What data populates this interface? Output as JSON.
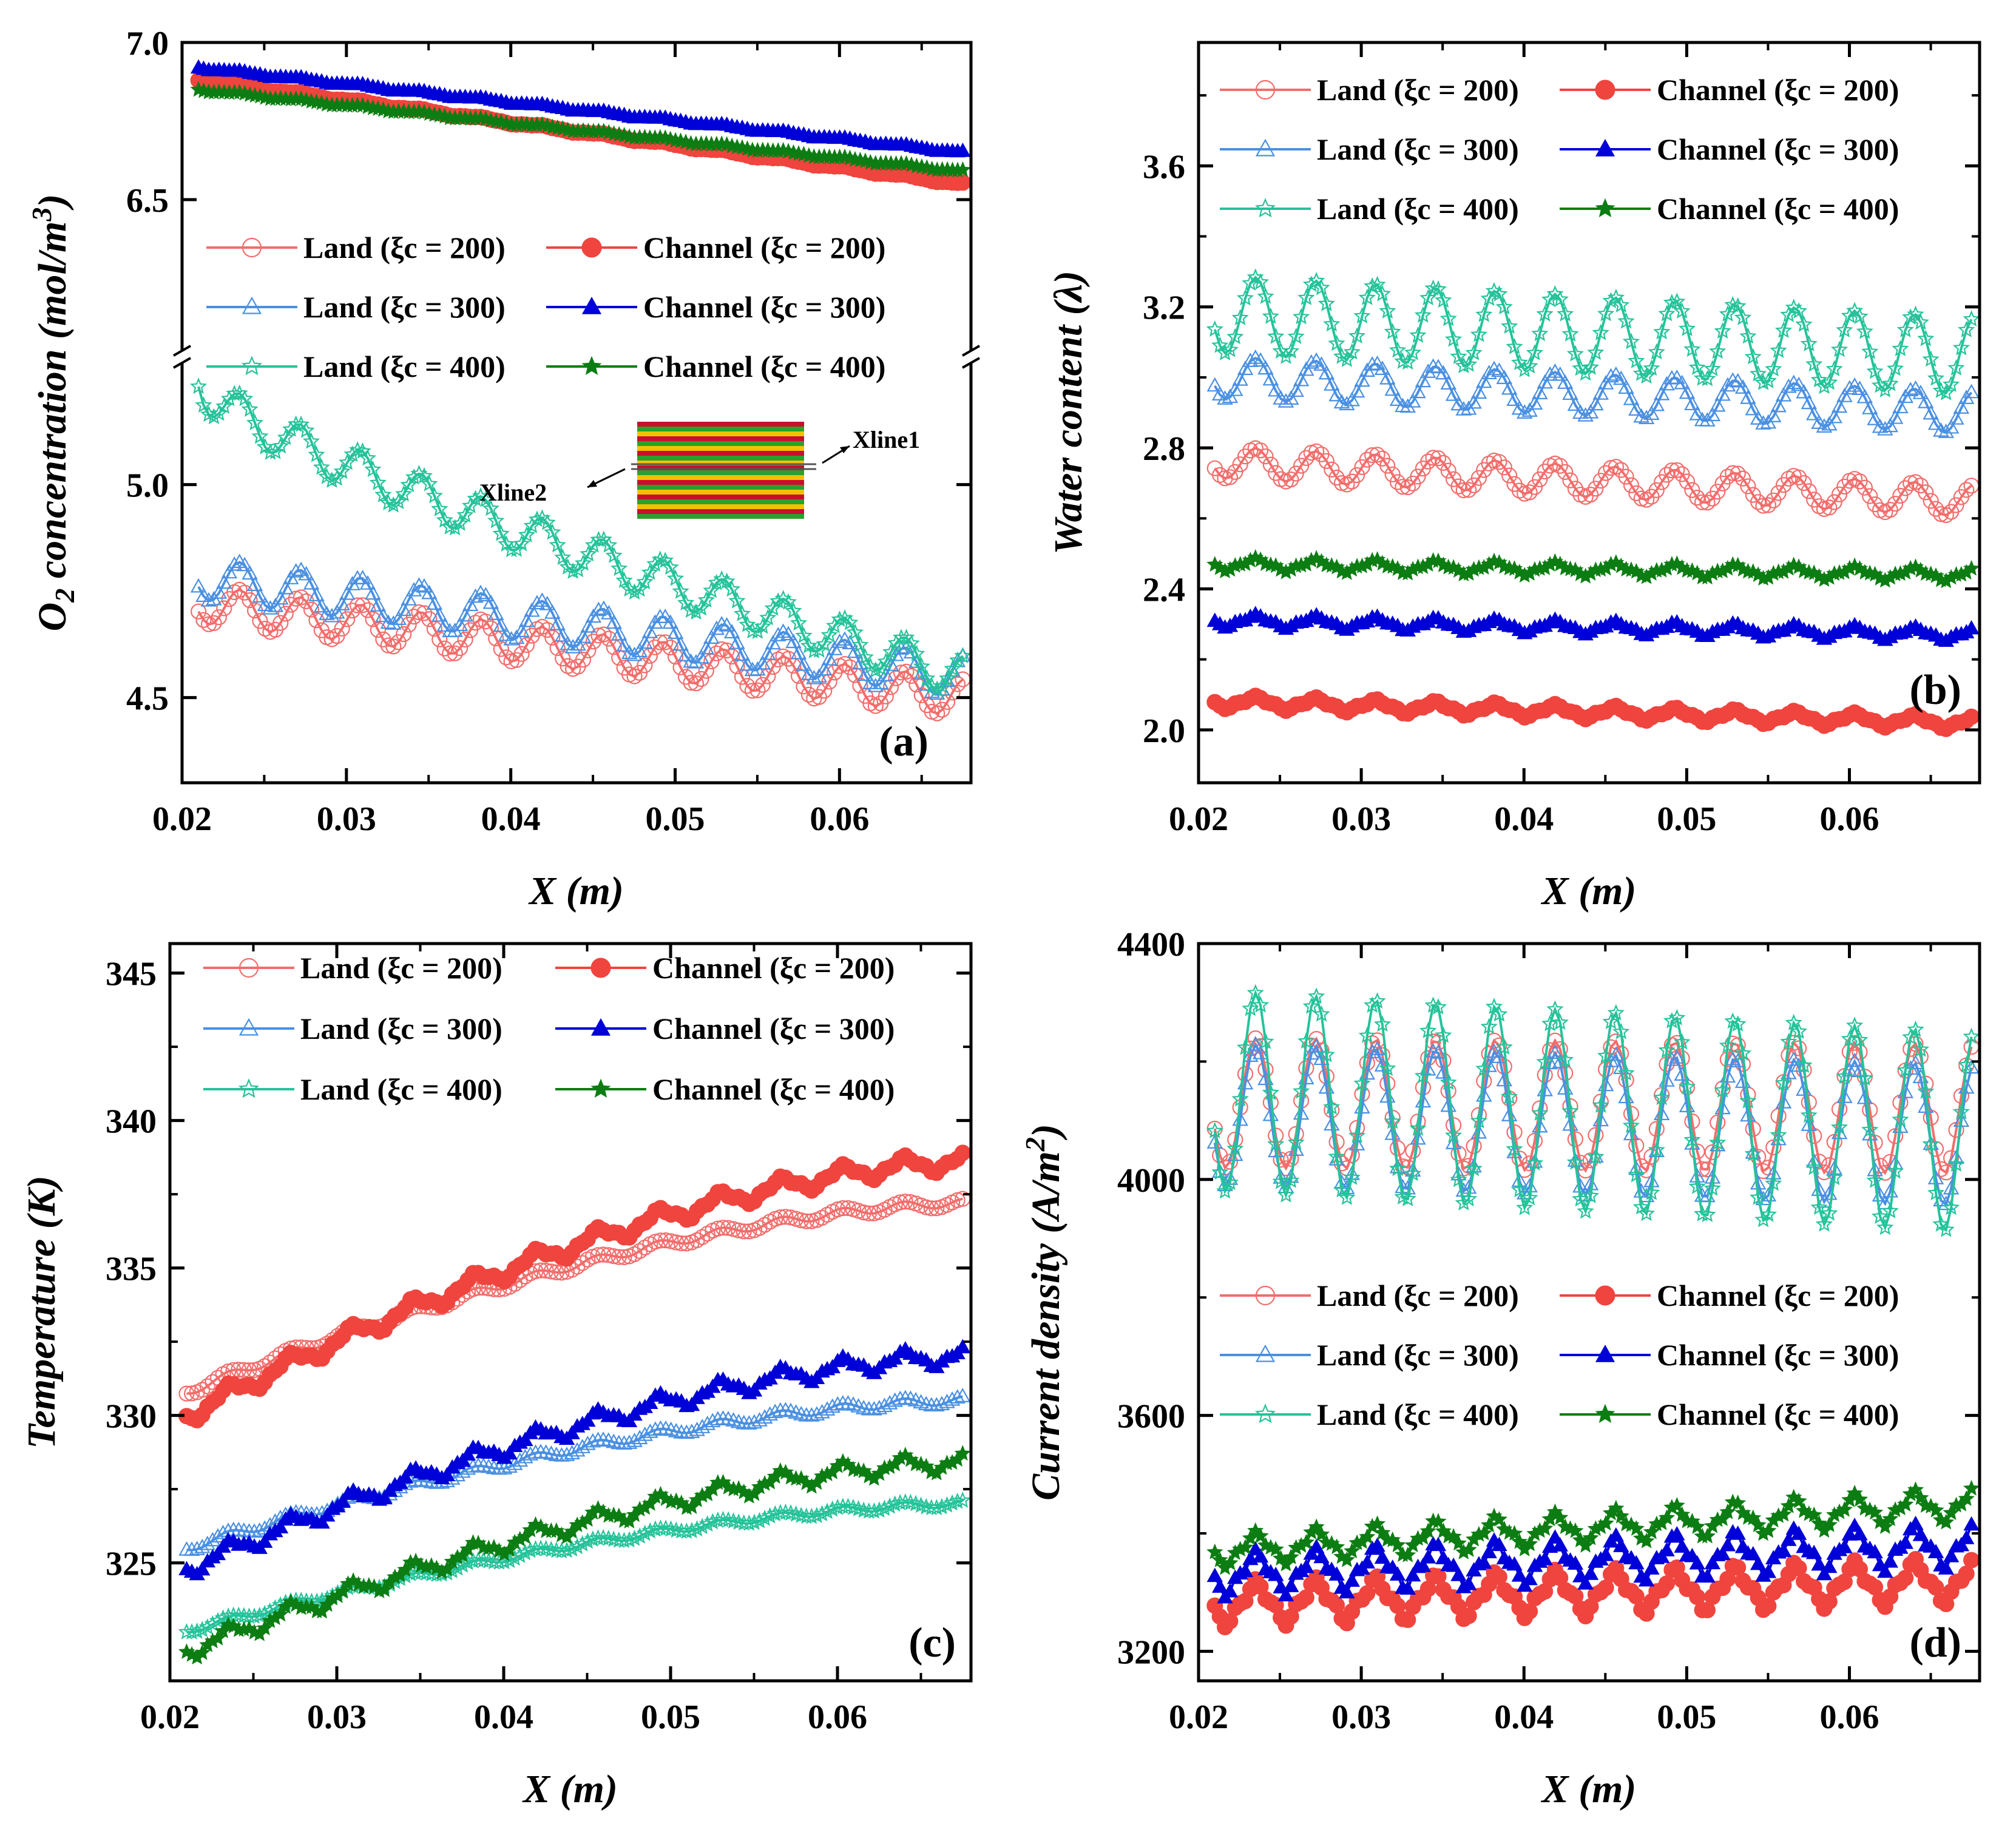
{
  "figure": {
    "description": "Four-panel PEMFC distribution plots along X for land and channel regions"
  },
  "styles": {
    "r200": "#f0443e",
    "r200_light": "#f26d6b",
    "r300": "#0000d8",
    "r300_light": "#4a90e2",
    "r400": "#0c7d12",
    "r400_light": "#25c39a"
  },
  "chart_data": [
    {
      "id": "a",
      "type": "line",
      "panel_label": "(a)",
      "xlabel": "X (m)",
      "ylabel_main": "O",
      "ylabel_sub": "2",
      "ylabel_rest": " concentration (mol/m",
      "ylabel_sup": "3",
      "ylabel_end": ")",
      "xlim": [
        0.02,
        0.068
      ],
      "broken_axis": true,
      "upper_ylim": [
        6.0,
        7.0
      ],
      "lower_ylim": [
        4.3,
        5.3
      ],
      "xticks": [
        {
          "v": 0.02,
          "t": "0.02"
        },
        {
          "v": 0.03,
          "t": "0.03"
        },
        {
          "v": 0.04,
          "t": "0.04"
        },
        {
          "v": 0.05,
          "t": "0.05"
        },
        {
          "v": 0.06,
          "t": "0.06"
        }
      ],
      "yticks": [
        {
          "v": 7.0,
          "t": "7.0"
        },
        {
          "v": 6.5,
          "t": "6.5"
        },
        {
          "v": 5.0,
          "t": "5.0"
        },
        {
          "v": 4.5,
          "t": "4.5"
        }
      ],
      "inset_labels": [
        "Xline1",
        "Xline2"
      ],
      "legend": {
        "land_200": "Land (ξc = 200)",
        "channel_200": "Channel (ξc = 200)",
        "land_300": "Land (ξc = 300)",
        "channel_300": "Channel (ξc = 300)",
        "land_400": "Land (ξc = 400)",
        "channel_400": "Channel (ξc = 400)"
      },
      "series": [
        {
          "name": "Land (ξc = 200)",
          "key": "land_200",
          "kind": "land",
          "marker": "circle",
          "color": "#f26d6b",
          "start": 4.72,
          "end": 4.5,
          "amp": 0.045,
          "segment": "lower"
        },
        {
          "name": "Land (ξc = 300)",
          "key": "land_300",
          "kind": "land",
          "marker": "triangle",
          "color": "#4a90e2",
          "start": 4.78,
          "end": 4.55,
          "amp": 0.05,
          "segment": "lower"
        },
        {
          "name": "Land (ξc = 400)",
          "key": "land_400",
          "kind": "land",
          "marker": "star",
          "color": "#25c39a",
          "start": 5.25,
          "end": 4.55,
          "amp": 0.05,
          "segment": "lower"
        },
        {
          "name": "Channel (ξc = 200)",
          "key": "channel_200",
          "kind": "channel",
          "marker": "circle",
          "color": "#f0443e",
          "start": 6.88,
          "end": 6.55,
          "amp": 0.005,
          "segment": "upper"
        },
        {
          "name": "Channel (ξc = 300)",
          "key": "channel_300",
          "kind": "channel",
          "marker": "triangle",
          "color": "#0000d8",
          "start": 6.92,
          "end": 6.65,
          "amp": 0.005,
          "segment": "upper"
        },
        {
          "name": "Channel (ξc = 400)",
          "key": "channel_400",
          "kind": "channel",
          "marker": "star",
          "color": "#0c7d12",
          "start": 6.85,
          "end": 6.59,
          "amp": 0.005,
          "segment": "upper"
        }
      ]
    },
    {
      "id": "b",
      "type": "line",
      "panel_label": "(b)",
      "xlabel": "X (m)",
      "ylabel": "Water content (λ)",
      "xlim": [
        0.02,
        0.068
      ],
      "ylim": [
        1.85,
        3.95
      ],
      "xticks": [
        {
          "v": 0.02,
          "t": "0.02"
        },
        {
          "v": 0.03,
          "t": "0.03"
        },
        {
          "v": 0.04,
          "t": "0.04"
        },
        {
          "v": 0.05,
          "t": "0.05"
        },
        {
          "v": 0.06,
          "t": "0.06"
        }
      ],
      "yticks": [
        {
          "v": 2.0,
          "t": "2.0"
        },
        {
          "v": 2.4,
          "t": "2.4"
        },
        {
          "v": 2.8,
          "t": "2.8"
        },
        {
          "v": 3.2,
          "t": "3.2"
        },
        {
          "v": 3.6,
          "t": "3.6"
        }
      ],
      "legend": {
        "land_200": "Land (ξc = 200)",
        "channel_200": "Channel (ξc = 200)",
        "land_300": "Land (ξc = 300)",
        "channel_300": "Channel (ξc = 300)",
        "land_400": "Land (ξc = 400)",
        "channel_400": "Channel (ξc = 400)"
      },
      "series": [
        {
          "name": "Land (ξc = 200)",
          "key": "land_200",
          "kind": "land",
          "marker": "circle",
          "color": "#f26d6b",
          "start": 2.76,
          "end": 2.65,
          "amp": 0.045
        },
        {
          "name": "Land (ξc = 300)",
          "key": "land_300",
          "kind": "land",
          "marker": "triangle",
          "color": "#4a90e2",
          "start": 3.0,
          "end": 2.9,
          "amp": 0.06
        },
        {
          "name": "Land (ξc = 400)",
          "key": "land_400",
          "kind": "land",
          "marker": "star",
          "color": "#25c39a",
          "start": 3.18,
          "end": 3.06,
          "amp": 0.11
        },
        {
          "name": "Channel (ξc = 200)",
          "key": "channel_200",
          "kind": "channel",
          "marker": "circle",
          "color": "#f0443e",
          "start": 2.08,
          "end": 2.02,
          "amp": 0.02
        },
        {
          "name": "Channel (ξc = 300)",
          "key": "channel_300",
          "kind": "channel",
          "marker": "triangle",
          "color": "#0000d8",
          "start": 2.31,
          "end": 2.27,
          "amp": 0.02
        },
        {
          "name": "Channel (ξc = 400)",
          "key": "channel_400",
          "kind": "channel",
          "marker": "star",
          "color": "#0c7d12",
          "start": 2.47,
          "end": 2.44,
          "amp": 0.02
        }
      ]
    },
    {
      "id": "c",
      "type": "line",
      "panel_label": "(c)",
      "xlabel": "X (m)",
      "ylabel": "Temperature (K)",
      "xlim": [
        0.02,
        0.068
      ],
      "ylim": [
        321.0,
        346.0
      ],
      "xticks": [
        {
          "v": 0.02,
          "t": "0.02"
        },
        {
          "v": 0.03,
          "t": "0.03"
        },
        {
          "v": 0.04,
          "t": "0.04"
        },
        {
          "v": 0.05,
          "t": "0.05"
        },
        {
          "v": 0.06,
          "t": "0.06"
        }
      ],
      "yticks": [
        {
          "v": 325,
          "t": "325"
        },
        {
          "v": 330,
          "t": "330"
        },
        {
          "v": 335,
          "t": "335"
        },
        {
          "v": 340,
          "t": "340"
        },
        {
          "v": 345,
          "t": "345"
        }
      ],
      "legend": {
        "land_200": "Land (ξc = 200)",
        "channel_200": "Channel (ξc = 200)",
        "land_300": "Land (ξc = 300)",
        "channel_300": "Channel (ξc = 300)",
        "land_400": "Land (ξc = 400)",
        "channel_400": "Channel (ξc = 400)"
      },
      "series": [
        {
          "name": "Land (ξc = 200)",
          "key": "land_200",
          "kind": "land",
          "marker": "circle",
          "color": "#f26d6b",
          "start": 330.8,
          "end": 337.2,
          "amp": 0.15,
          "curve": "sat"
        },
        {
          "name": "Land (ξc = 300)",
          "key": "land_300",
          "kind": "land",
          "marker": "triangle",
          "color": "#4a90e2",
          "start": 325.5,
          "end": 330.5,
          "amp": 0.15,
          "curve": "sat"
        },
        {
          "name": "Land (ξc = 400)",
          "key": "land_400",
          "kind": "land",
          "marker": "star",
          "color": "#25c39a",
          "start": 322.7,
          "end": 327.0,
          "amp": 0.12,
          "curve": "sat"
        },
        {
          "name": "Channel (ξc = 200)",
          "key": "channel_200",
          "kind": "channel",
          "marker": "circle",
          "color": "#f0443e",
          "start": 330.0,
          "end": 338.6,
          "amp": 0.35,
          "curve": "sat"
        },
        {
          "name": "Channel (ξc = 300)",
          "key": "channel_300",
          "kind": "channel",
          "marker": "triangle",
          "color": "#0000d8",
          "start": 324.8,
          "end": 332.0,
          "amp": 0.35,
          "curve": "sat"
        },
        {
          "name": "Channel (ξc = 400)",
          "key": "channel_400",
          "kind": "channel",
          "marker": "star",
          "color": "#0c7d12",
          "start": 322.0,
          "end": 328.4,
          "amp": 0.35,
          "curve": "sat"
        }
      ]
    },
    {
      "id": "d",
      "type": "line",
      "panel_label": "(d)",
      "xlabel": "X (m)",
      "ylabel_main": "Current density (A/m",
      "ylabel_sup": "2",
      "ylabel_end": ")",
      "xlim": [
        0.02,
        0.068
      ],
      "ylim": [
        3150,
        4400
      ],
      "xticks": [
        {
          "v": 0.02,
          "t": "0.02"
        },
        {
          "v": 0.03,
          "t": "0.03"
        },
        {
          "v": 0.04,
          "t": "0.04"
        },
        {
          "v": 0.05,
          "t": "0.05"
        },
        {
          "v": 0.06,
          "t": "0.06"
        }
      ],
      "yticks": [
        {
          "v": 3200,
          "t": "3200"
        },
        {
          "v": 3600,
          "t": "3600"
        },
        {
          "v": 4000,
          "t": "4000"
        },
        {
          "v": 4400,
          "t": "4400"
        }
      ],
      "legend": {
        "land_200": "Land (ξc = 200)",
        "channel_200": "Channel (ξc = 200)",
        "land_300": "Land (ξc = 300)",
        "channel_300": "Channel (ξc = 300)",
        "land_400": "Land (ξc = 400)",
        "channel_400": "Channel (ξc = 400)"
      },
      "series": [
        {
          "name": "Land (ξc = 200)",
          "key": "land_200",
          "kind": "land",
          "marker": "circle",
          "color": "#f26d6b",
          "start": 4130,
          "end": 4120,
          "amp": 110
        },
        {
          "name": "Land (ξc = 300)",
          "key": "land_300",
          "kind": "land",
          "marker": "triangle",
          "color": "#4a90e2",
          "start": 4110,
          "end": 4075,
          "amp": 120
        },
        {
          "name": "Land (ξc = 400)",
          "key": "land_400",
          "kind": "land",
          "marker": "star",
          "color": "#25c39a",
          "start": 4150,
          "end": 4080,
          "amp": 170
        },
        {
          "name": "Channel (ξc = 200)",
          "key": "channel_200",
          "kind": "channel",
          "marker": "circle",
          "color": "#f0443e",
          "start": 3280,
          "end": 3320,
          "amp": 40
        },
        {
          "name": "Channel (ξc = 300)",
          "key": "channel_300",
          "kind": "channel",
          "marker": "triangle",
          "color": "#0000d8",
          "start": 3330,
          "end": 3380,
          "amp": 40
        },
        {
          "name": "Channel (ξc = 400)",
          "key": "channel_400",
          "kind": "channel",
          "marker": "star",
          "color": "#0c7d12",
          "start": 3370,
          "end": 3450,
          "amp": 30
        }
      ]
    }
  ]
}
